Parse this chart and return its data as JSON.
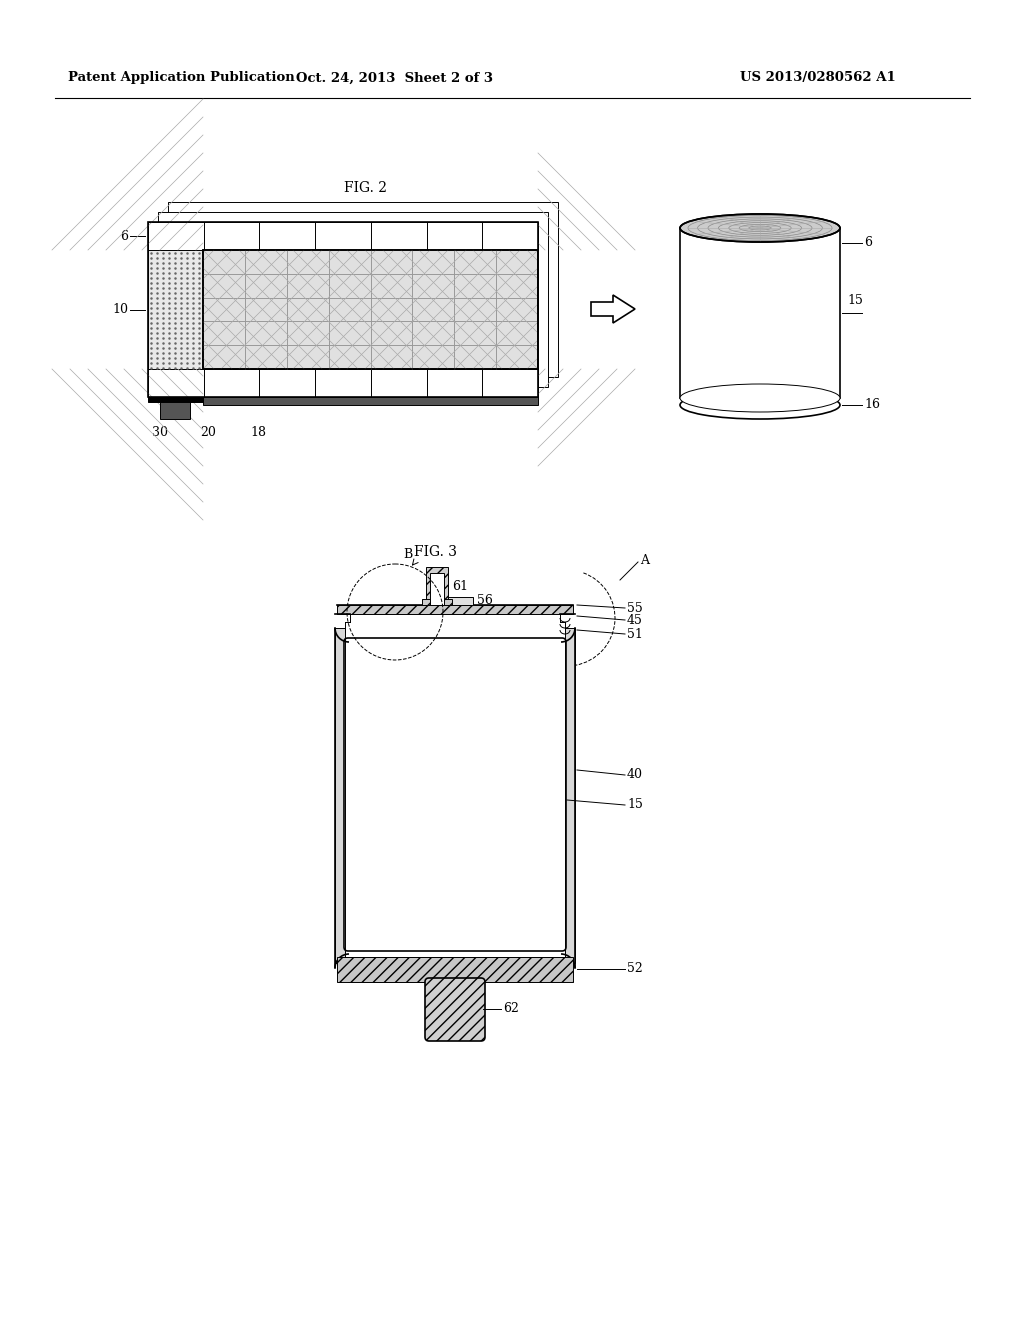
{
  "bg_color": "#ffffff",
  "header_left": "Patent Application Publication",
  "header_mid": "Oct. 24, 2013  Sheet 2 of 3",
  "header_right": "US 2013/0280562 A1",
  "fig2_label": "FIG. 2",
  "fig3_label": "FIG. 3",
  "lc": "#000000",
  "gray_hatch": "#999999",
  "light_fill": "#f0f0f0",
  "dot_fill": "#d8d8d8",
  "cross_fill": "#c8c8c8"
}
